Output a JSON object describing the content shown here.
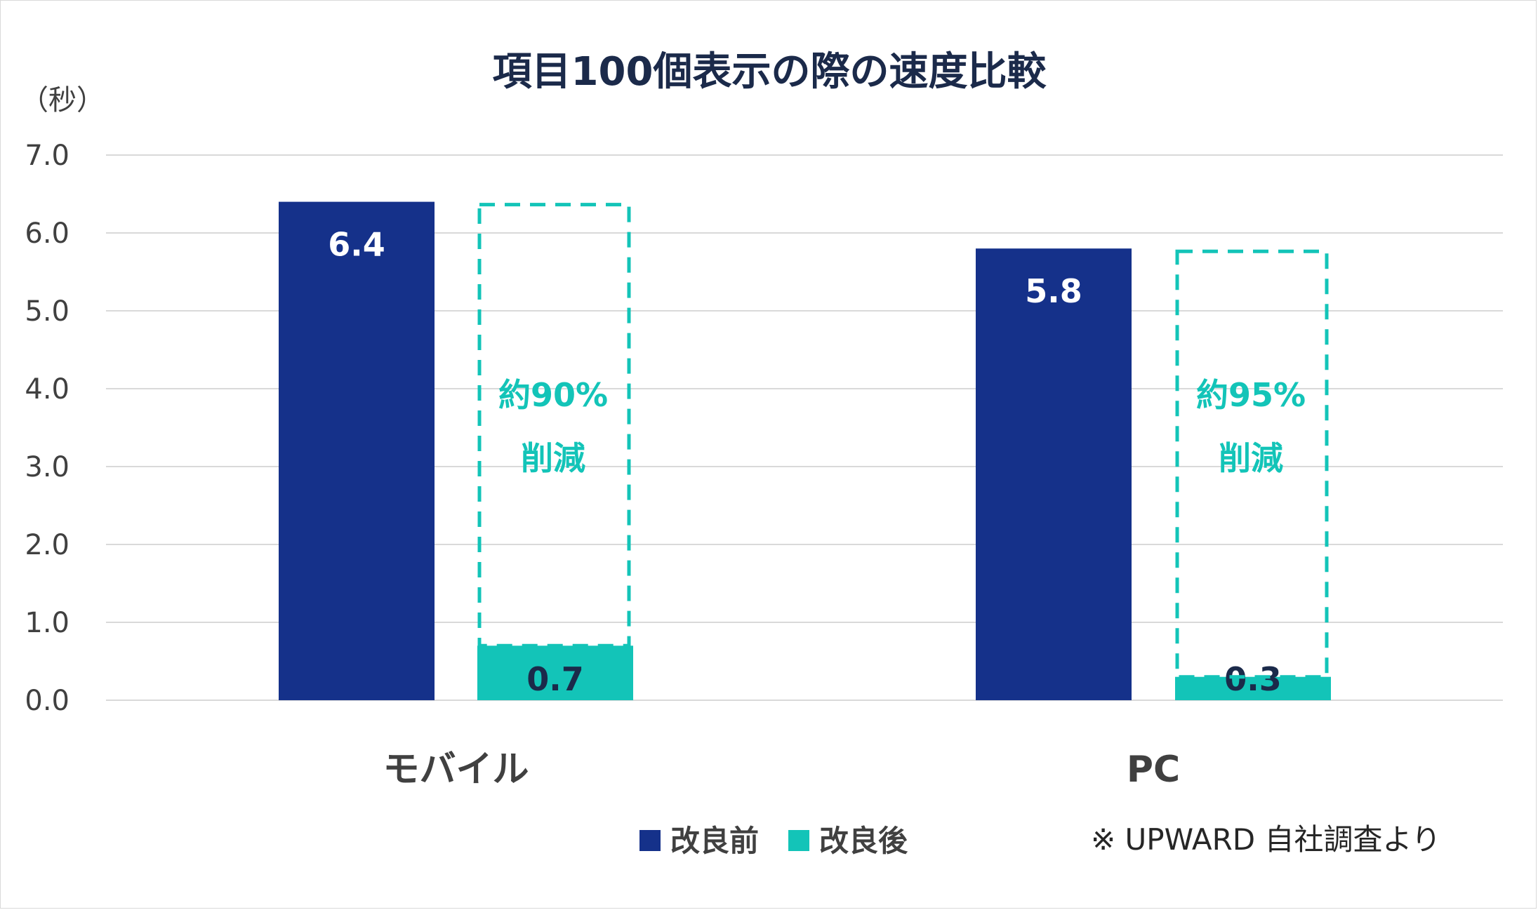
{
  "chart_data": {
    "type": "bar",
    "title": "項目100個表示の際の速度比較",
    "unit_label": "（秒）",
    "categories": [
      "モバイル",
      "PC"
    ],
    "series": [
      {
        "name": "改良前",
        "values": [
          6.4,
          5.8
        ],
        "color": "#15318a"
      },
      {
        "name": "改良後",
        "values": [
          0.7,
          0.3
        ],
        "color": "#13c4b8"
      }
    ],
    "data_labels": {
      "before": [
        "6.4",
        "5.8"
      ],
      "after": [
        "0.7",
        "0.3"
      ]
    },
    "ylim": [
      0,
      7
    ],
    "yticks": [
      "0.0",
      "1.0",
      "2.0",
      "3.0",
      "4.0",
      "5.0",
      "6.0",
      "7.0"
    ],
    "grid": true,
    "legend_position": "bottom",
    "annotations": [
      {
        "line1": "約90%",
        "line2": "削減"
      },
      {
        "line1": "約95%",
        "line2": "削減"
      }
    ],
    "note": "※ UPWARD 自社調査より",
    "colors": {
      "before": "#15318a",
      "after": "#13c4b8",
      "gridline": "#d9d9d9"
    }
  }
}
